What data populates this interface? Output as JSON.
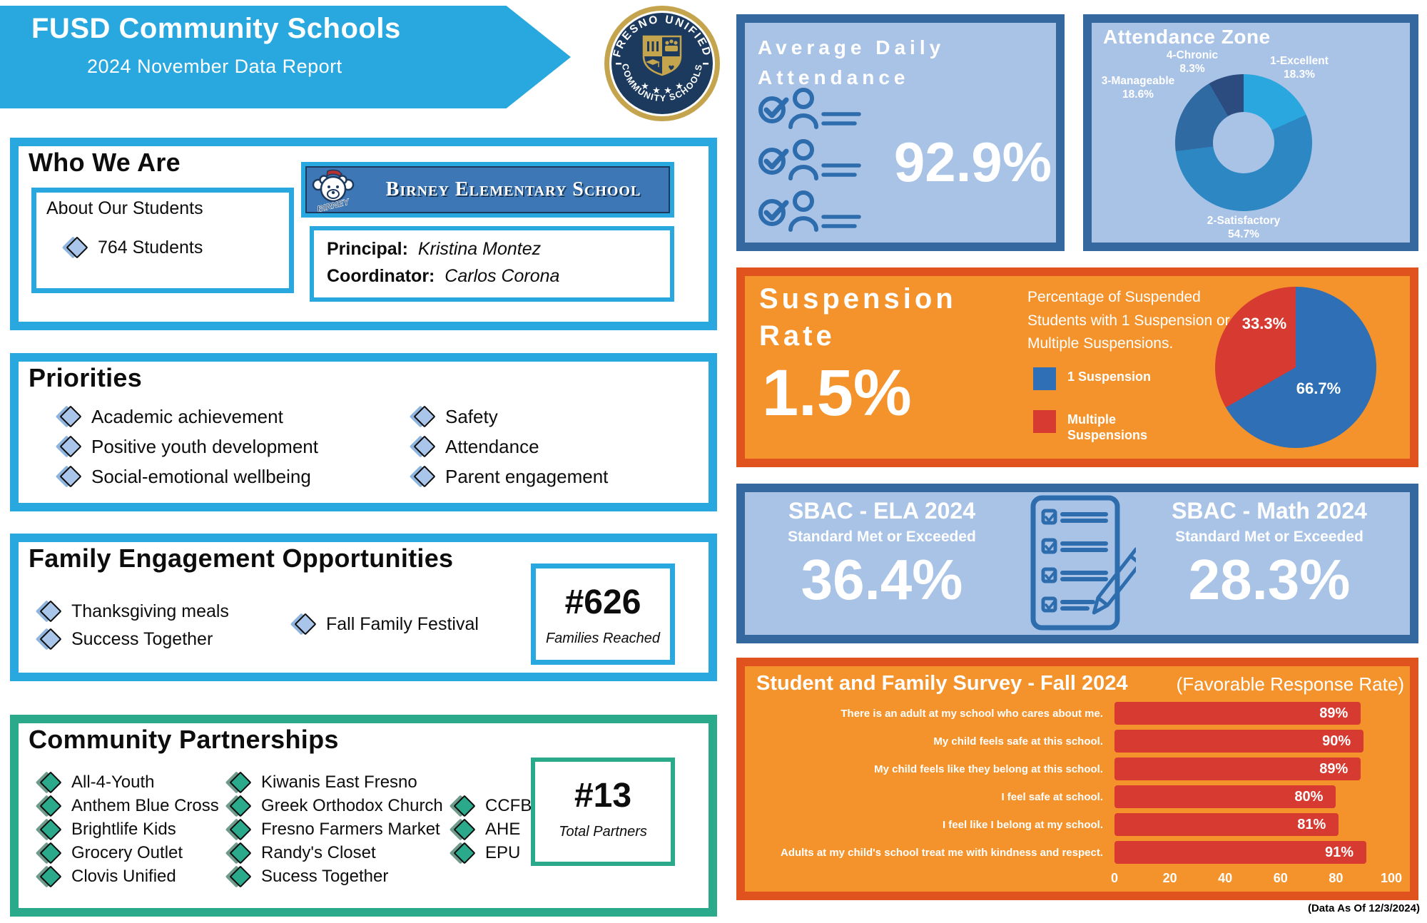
{
  "page": {
    "note": "(Data As Of 12/3/2024)"
  },
  "header": {
    "title": "FUSD Community Schools",
    "subtitle": "2024 November Data Report",
    "logo_top_text": "FRESNO UNIFIED",
    "logo_bottom_text": "COMMUNITY SCHOOLS"
  },
  "who_we_are": {
    "title": "Who We Are",
    "about_title": "About Our Students",
    "students_count": "764 Students",
    "school_name": "Birney Elementary School",
    "mascot_text": "BIRNEY",
    "principal_label": "Principal:",
    "principal_name": "Kristina Montez",
    "coordinator_label": "Coordinator:",
    "coordinator_name": "Carlos Corona"
  },
  "priorities": {
    "title": "Priorities",
    "column1": [
      "Academic achievement",
      "Positive youth development",
      "Social-emotional wellbeing"
    ],
    "column2": [
      "Safety",
      "Attendance",
      "Parent engagement"
    ]
  },
  "family_engagement": {
    "title": "Family Engagement Opportunities",
    "column1": [
      "Thanksgiving meals",
      "Success Together"
    ],
    "column2": [
      "Fall Family Festival"
    ],
    "stat_value": "#626",
    "stat_label": "Families Reached"
  },
  "community_partnerships": {
    "title": "Community Partnerships",
    "column1": [
      "All-4-Youth",
      "Anthem Blue Cross",
      "Brightlife Kids",
      "Grocery Outlet",
      "Clovis Unified"
    ],
    "column2": [
      "Kiwanis East Fresno",
      "Greek Orthodox Church",
      "Fresno Farmers Market",
      "Randy's Closet",
      "Sucess Together"
    ],
    "column3": [
      "CCFB",
      "AHE",
      "EPU"
    ],
    "stat_value": "#13",
    "stat_label": "Total Partners"
  },
  "attendance": {
    "title_line1": "Average Daily",
    "title_line2": "Attendance",
    "value": "92.9%"
  },
  "suspension": {
    "title_line1": "Suspension",
    "title_line2": "Rate",
    "value": "1.5%",
    "description": "Percentage of Suspended Students with 1 Suspension or Multiple Suspensions."
  },
  "sbac": {
    "ela_title": "SBAC - ELA 2024",
    "ela_subtitle": "Standard Met or Exceeded",
    "ela_value": "36.4%",
    "math_title": "SBAC - Math 2024",
    "math_subtitle": "Standard Met or Exceeded",
    "math_value": "28.3%"
  },
  "survey": {
    "title": "Student and Family Survey - Fall 2024",
    "subtitle": "(Favorable Response Rate)"
  },
  "colors": {
    "cyan": "#29A8E0",
    "panel_blue_bg": "#A9C3E6",
    "panel_blue_border": "#35689E",
    "orange_bg": "#F4932C",
    "orange_border": "#E0531E",
    "red": "#D63A31",
    "pie_blue": "#2E6FB5",
    "green": "#2BAA8B",
    "navy": "#1C3A5E",
    "gold": "#C5A44E"
  },
  "chart_data": [
    {
      "id": "attendance_zone",
      "type": "pie",
      "variant": "donut",
      "title": "Attendance Zone",
      "labels": [
        "1-Excellent",
        "2-Satisfactory",
        "3-Manageable",
        "4-Chronic"
      ],
      "values": [
        18.3,
        54.7,
        18.6,
        8.3
      ],
      "colors": [
        "#2AA7DE",
        "#2D87C3",
        "#2F6AA3",
        "#2C4C7F"
      ],
      "start_angle_deg": 0,
      "direction": "clockwise",
      "legend_position": "outside-labels"
    },
    {
      "id": "suspension_split",
      "type": "pie",
      "labels": [
        "1 Suspension",
        "Multiple Suspensions"
      ],
      "values": [
        66.7,
        33.3
      ],
      "colors": [
        "#2E6FB5",
        "#D63A31"
      ],
      "start_angle_deg": 0,
      "direction": "clockwise",
      "legend_position": "left"
    },
    {
      "id": "survey_favorable",
      "type": "bar",
      "orientation": "horizontal",
      "title": "Student and Family Survey - Fall 2024",
      "subtitle": "(Favorable Response Rate)",
      "categories": [
        "There is an adult at my school who cares about me.",
        "My child feels safe at this school.",
        "My child feels like they belong at this school.",
        "I feel safe at school.",
        "I feel like I belong at my school.",
        "Adults at my child's school treat me with kindness and respect."
      ],
      "values": [
        89,
        90,
        89,
        80,
        81,
        91
      ],
      "bar_color": "#D63A31",
      "value_suffix": "%",
      "xlim": [
        0,
        100
      ],
      "xticks": [
        0,
        20,
        40,
        60,
        80,
        100
      ],
      "grid": false,
      "ylabel": "",
      "xlabel": ""
    }
  ]
}
